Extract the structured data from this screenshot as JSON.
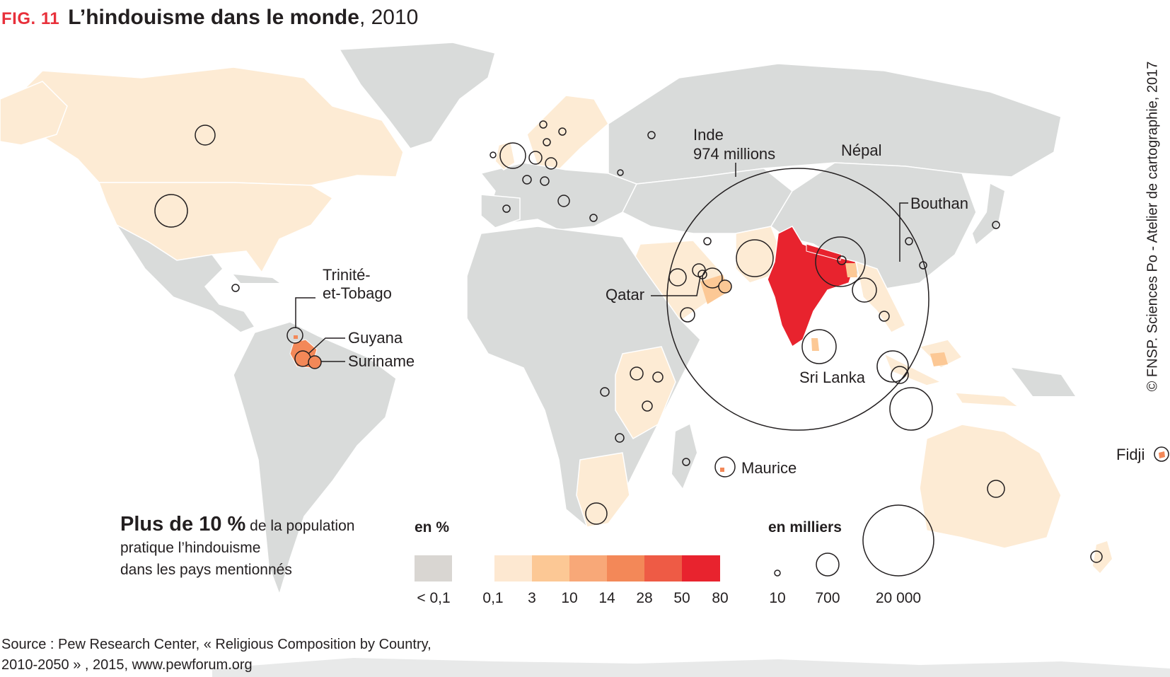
{
  "header": {
    "fig_tag": "FIG. 11",
    "title": "L’hindouisme dans le monde",
    "year": ", 2010"
  },
  "colors": {
    "land_default": "#d9dbda",
    "land_low": "#fdebd4",
    "pct_bins": [
      "#d9d6d2",
      "#fde8d1",
      "#fcc895",
      "#f8a878",
      "#f38858",
      "#ee5b45",
      "#e8232e"
    ],
    "accent_red": "#e8303b",
    "circle_stroke": "#231f20"
  },
  "map": {
    "labels": {
      "inde_line1": "Inde",
      "inde_line2": "974 millions",
      "nepal": "Népal",
      "bouthan": "Bouthan",
      "qatar": "Qatar",
      "sri_lanka": "Sri Lanka",
      "trinite_line1": "Trinité-",
      "trinite_line2": "et-Tobago",
      "guyana": "Guyana",
      "suriname": "Suriname",
      "maurice": "Maurice",
      "fidji": "Fidji"
    }
  },
  "legend": {
    "description_bold": "Plus de 10 %",
    "description_rest1": " de la population",
    "description_line2": "pratique l’hindouisme",
    "description_line3": "dans les pays mentionnés",
    "pct_title": "en %",
    "pct_labels": [
      "< 0,1",
      "0,1",
      "3",
      "10",
      "14",
      "28",
      "50",
      "80"
    ],
    "size_title": "en milliers",
    "size_labels": [
      "10",
      "700",
      "20 000"
    ]
  },
  "footer": {
    "source_line1": "Source : Pew Research Center, « Religious Composition by Country,",
    "source_line2": "2010-2050 » , 2015, www.pewforum.org",
    "credit": "© FNSP. Sciences Po - Atelier de cartographie, 2017"
  }
}
